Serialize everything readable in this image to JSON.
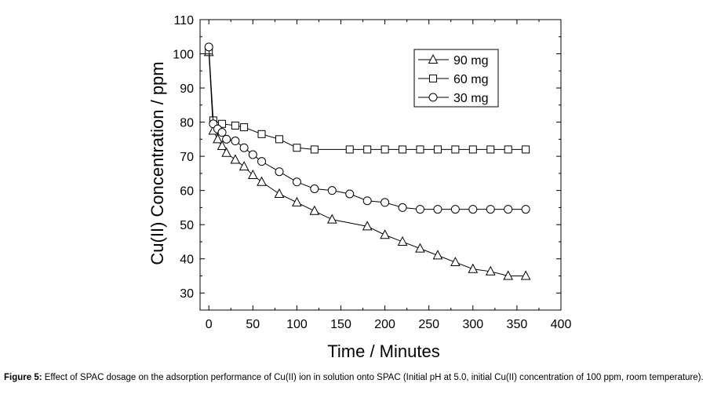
{
  "chart_data": {
    "type": "line",
    "xlabel": "Time / Minutes",
    "ylabel": "Cu(II) Concentration / ppm",
    "xlim": [
      -10,
      400
    ],
    "ylim": [
      25,
      110
    ],
    "xticks": [
      0,
      50,
      100,
      150,
      200,
      250,
      300,
      350,
      400
    ],
    "yticks": [
      30,
      40,
      50,
      60,
      70,
      80,
      90,
      100,
      110
    ],
    "legend_position": "top-right",
    "grid": false,
    "series": [
      {
        "name": "90 mg",
        "marker": "triangle",
        "x": [
          0,
          5,
          10,
          15,
          20,
          30,
          40,
          50,
          60,
          80,
          100,
          120,
          140,
          180,
          200,
          220,
          240,
          260,
          280,
          300,
          320,
          340,
          360
        ],
        "y": [
          100.5,
          77.5,
          75,
          73,
          71,
          69,
          67,
          64.5,
          62.5,
          59,
          56.5,
          54,
          51.5,
          49.5,
          47,
          45,
          43,
          41,
          39,
          37,
          36.3,
          35,
          35
        ]
      },
      {
        "name": "60 mg",
        "marker": "square",
        "x": [
          0,
          5,
          15,
          30,
          40,
          60,
          80,
          100,
          120,
          160,
          180,
          200,
          220,
          240,
          260,
          280,
          300,
          320,
          340,
          360
        ],
        "y": [
          101,
          80.5,
          79.5,
          79,
          78.5,
          76.5,
          75,
          72.5,
          72,
          72,
          72,
          72,
          72,
          72,
          72,
          72,
          72,
          72,
          72,
          72
        ]
      },
      {
        "name": "30 mg",
        "marker": "circle",
        "x": [
          0,
          5,
          10,
          15,
          20,
          30,
          40,
          50,
          60,
          80,
          100,
          120,
          140,
          160,
          180,
          200,
          220,
          240,
          260,
          280,
          300,
          320,
          340,
          360
        ],
        "y": [
          102,
          79.5,
          78,
          77,
          75,
          74.5,
          72.5,
          70.5,
          68.5,
          65.5,
          62.5,
          60.5,
          60,
          59,
          57,
          56.5,
          55,
          54.5,
          54.5,
          54.5,
          54.5,
          54.5,
          54.5,
          54.5
        ]
      }
    ]
  },
  "caption": {
    "label": "Figure 5:",
    "text": " Effect of SPAC dosage on the adsorption performance of Cu(II) ion in solution onto SPAC (Initial pH at 5.0, initial Cu(II) concentration of 100 ppm, room temperature)."
  }
}
